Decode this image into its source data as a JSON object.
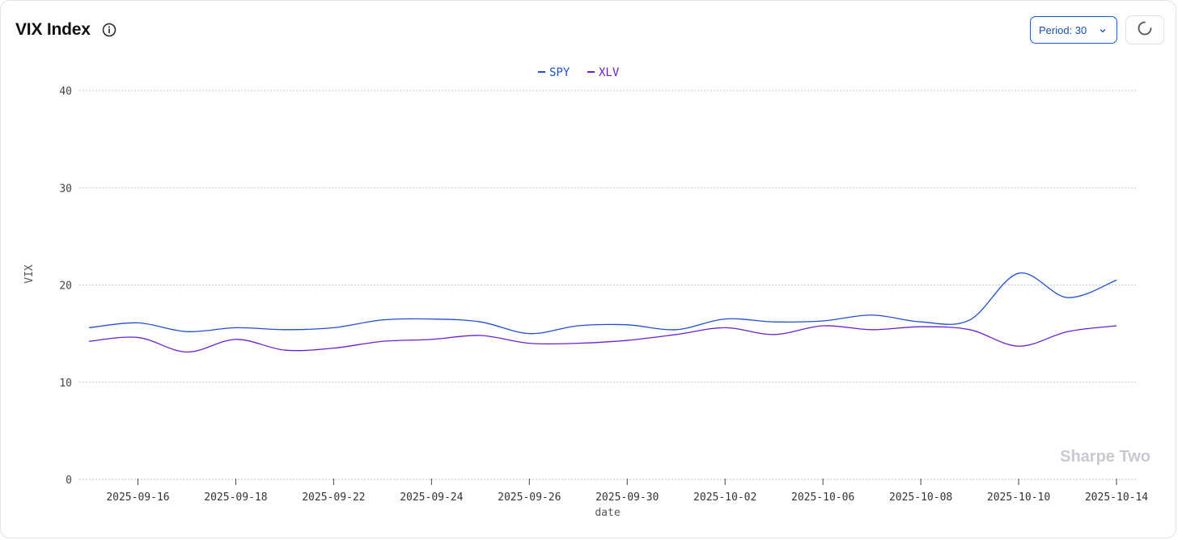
{
  "header": {
    "title": "VIX Index",
    "period_label": "Period: 30"
  },
  "icons": {
    "info": "info-icon",
    "chevron": "chevron-down-icon",
    "refresh": "refresh-spinner-icon"
  },
  "watermark": "Sharpe Two",
  "colors": {
    "SPY": "#1f4fd1",
    "XLV": "#6a1fd0",
    "accent": "#1a5ccf"
  },
  "chart_data": {
    "type": "line",
    "xlabel": "date",
    "ylabel": "VIX",
    "ylim": [
      0,
      40
    ],
    "yticks": [
      0,
      10,
      20,
      30,
      40
    ],
    "grid": true,
    "legend_position": "top-center",
    "x": [
      "2025-09-15",
      "2025-09-16",
      "2025-09-17",
      "2025-09-18",
      "2025-09-19",
      "2025-09-22",
      "2025-09-23",
      "2025-09-24",
      "2025-09-25",
      "2025-09-26",
      "2025-09-29",
      "2025-09-30",
      "2025-10-01",
      "2025-10-02",
      "2025-10-03",
      "2025-10-06",
      "2025-10-07",
      "2025-10-08",
      "2025-10-09",
      "2025-10-10",
      "2025-10-13",
      "2025-10-14"
    ],
    "xtick_labels": [
      "2025-09-16",
      "2025-09-18",
      "2025-09-22",
      "2025-09-24",
      "2025-09-26",
      "2025-09-30",
      "2025-10-02",
      "2025-10-06",
      "2025-10-08",
      "2025-10-10",
      "2025-10-14"
    ],
    "series": [
      {
        "name": "SPY",
        "values": [
          15.6,
          16.1,
          15.2,
          15.6,
          15.4,
          15.6,
          16.4,
          16.5,
          16.2,
          15.0,
          15.8,
          15.9,
          15.4,
          16.5,
          16.2,
          16.3,
          16.9,
          16.2,
          16.4,
          21.2,
          18.7,
          20.5
        ]
      },
      {
        "name": "XLV",
        "values": [
          14.2,
          14.6,
          13.1,
          14.4,
          13.3,
          13.5,
          14.2,
          14.4,
          14.8,
          14.0,
          14.0,
          14.3,
          14.9,
          15.6,
          14.9,
          15.8,
          15.4,
          15.7,
          15.4,
          13.7,
          15.2,
          15.8
        ]
      }
    ]
  }
}
